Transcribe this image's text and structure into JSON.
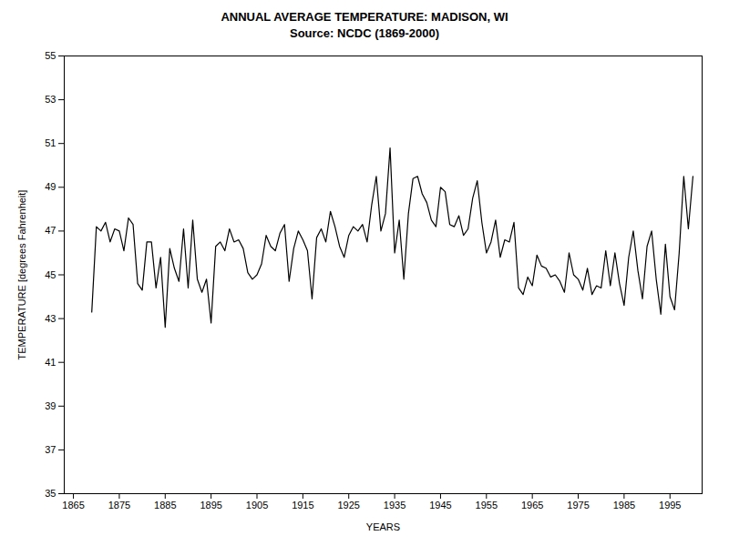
{
  "chart_data": {
    "type": "line",
    "title": "ANNUAL AVERAGE TEMPERATURE: MADISON, WI",
    "subtitle": "Source: NCDC (1869-2000)",
    "xlabel": "YEARS",
    "ylabel": "TEMPERATURE [degrees Fahrenheit]",
    "xlim": [
      1863,
      2002
    ],
    "ylim": [
      35,
      55
    ],
    "xticks": [
      1865,
      1875,
      1885,
      1895,
      1905,
      1915,
      1925,
      1935,
      1945,
      1955,
      1965,
      1975,
      1985,
      1995
    ],
    "yticks": [
      35,
      37,
      39,
      41,
      43,
      45,
      47,
      49,
      51,
      53,
      55
    ],
    "grid": false,
    "x": [
      1869,
      1870,
      1871,
      1872,
      1873,
      1874,
      1875,
      1876,
      1877,
      1878,
      1879,
      1880,
      1881,
      1882,
      1883,
      1884,
      1885,
      1886,
      1887,
      1888,
      1889,
      1890,
      1891,
      1892,
      1893,
      1894,
      1895,
      1896,
      1897,
      1898,
      1899,
      1900,
      1901,
      1902,
      1903,
      1904,
      1905,
      1906,
      1907,
      1908,
      1909,
      1910,
      1911,
      1912,
      1913,
      1914,
      1915,
      1916,
      1917,
      1918,
      1919,
      1920,
      1921,
      1922,
      1923,
      1924,
      1925,
      1926,
      1927,
      1928,
      1929,
      1930,
      1931,
      1932,
      1933,
      1934,
      1935,
      1936,
      1937,
      1938,
      1939,
      1940,
      1941,
      1942,
      1943,
      1944,
      1945,
      1946,
      1947,
      1948,
      1949,
      1950,
      1951,
      1952,
      1953,
      1954,
      1955,
      1956,
      1957,
      1958,
      1959,
      1960,
      1961,
      1962,
      1963,
      1964,
      1965,
      1966,
      1967,
      1968,
      1969,
      1970,
      1971,
      1972,
      1973,
      1974,
      1975,
      1976,
      1977,
      1978,
      1979,
      1980,
      1981,
      1982,
      1983,
      1984,
      1985,
      1986,
      1987,
      1988,
      1989,
      1990,
      1991,
      1992,
      1993,
      1994,
      1995,
      1996,
      1997,
      1998,
      1999,
      2000
    ],
    "series": [
      {
        "color": "#000000",
        "values": [
          43.3,
          47.2,
          47.0,
          47.4,
          46.5,
          47.1,
          47.0,
          46.1,
          47.6,
          47.3,
          44.6,
          44.3,
          46.5,
          46.5,
          44.4,
          45.8,
          42.6,
          46.2,
          45.3,
          44.7,
          47.1,
          44.4,
          47.5,
          44.8,
          44.2,
          44.8,
          42.8,
          46.3,
          46.5,
          46.1,
          47.1,
          46.5,
          46.6,
          46.2,
          45.1,
          44.8,
          45.0,
          45.5,
          46.8,
          46.3,
          46.1,
          46.9,
          47.3,
          44.7,
          46.2,
          47.0,
          46.6,
          46.1,
          43.9,
          46.7,
          47.1,
          46.5,
          47.9,
          47.2,
          46.3,
          45.8,
          46.8,
          47.2,
          47.0,
          47.3,
          46.5,
          48.2,
          49.5,
          47.0,
          47.8,
          50.8,
          46.0,
          47.5,
          44.8,
          47.8,
          49.4,
          49.5,
          48.7,
          48.3,
          47.5,
          47.2,
          49.0,
          48.8,
          47.3,
          47.2,
          47.7,
          46.8,
          47.1,
          48.5,
          49.3,
          47.4,
          46.0,
          46.5,
          47.5,
          45.8,
          46.6,
          46.5,
          47.4,
          44.4,
          44.1,
          44.9,
          44.5,
          45.9,
          45.4,
          45.3,
          44.9,
          45.0,
          44.7,
          44.2,
          46.0,
          45.0,
          44.8,
          44.3,
          45.3,
          44.1,
          44.5,
          44.4,
          46.1,
          44.5,
          46.0,
          44.6,
          43.6,
          45.8,
          47.0,
          45.2,
          43.9,
          46.3,
          47.0,
          44.8,
          43.2,
          46.4,
          44.0,
          43.4,
          46.0,
          49.5,
          47.1,
          49.5
        ]
      }
    ]
  }
}
